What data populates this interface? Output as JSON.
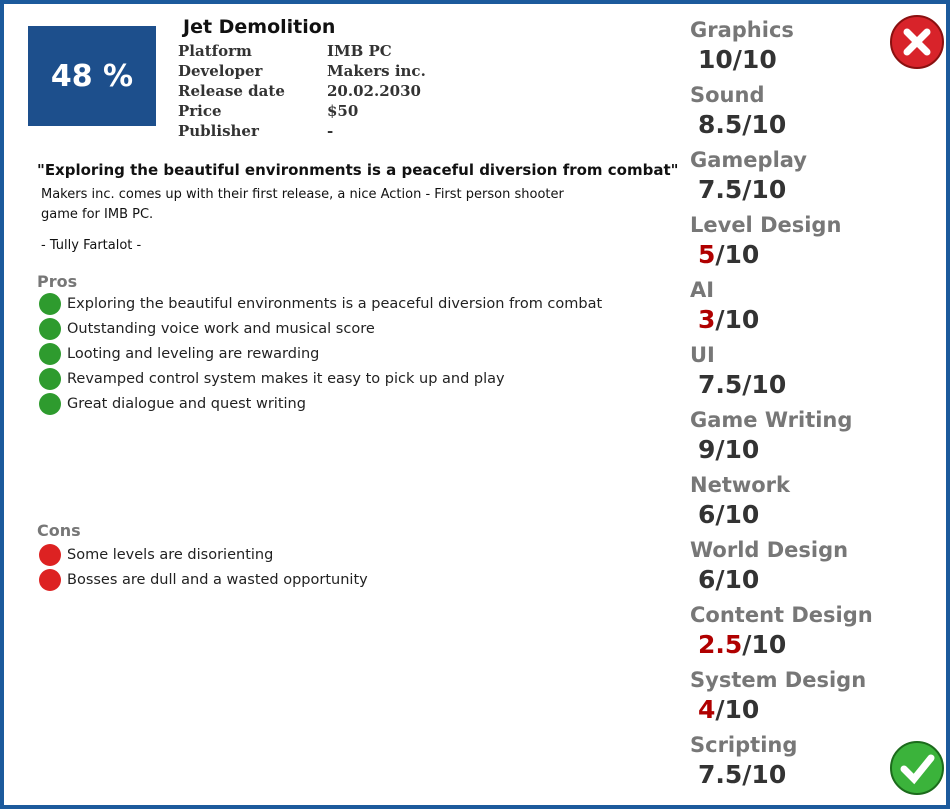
{
  "header": {
    "score": "48 %",
    "title": "Jet Demolition",
    "info": [
      {
        "label": "Platform",
        "value": "IMB PC"
      },
      {
        "label": "Developer",
        "value": "Makers inc."
      },
      {
        "label": "Release date",
        "value": "20.02.2030"
      },
      {
        "label": "Price",
        "value": "$50"
      },
      {
        "label": "Publisher",
        "value": "-"
      }
    ]
  },
  "review": {
    "quote": "\"Exploring the beautiful environments is a peaceful diversion from combat\"",
    "text": "Makers inc. comes up with their first release, a nice Action - First person shooter game for IMB PC.",
    "author": "- Tully Fartalot -"
  },
  "pros": {
    "title": "Pros",
    "color": "#2e9b2e",
    "items": [
      "Exploring the beautiful environments is a peaceful diversion from combat",
      "Outstanding voice work and musical score",
      "Looting and leveling are rewarding",
      "Revamped control system makes it easy to pick up and play",
      "Great dialogue and quest writing"
    ]
  },
  "cons": {
    "title": "Cons",
    "color": "#d22",
    "items": [
      "Some levels are disorienting",
      "Bosses are dull and a wasted opportunity"
    ]
  },
  "ratings": [
    {
      "name": "Graphics",
      "score": "10",
      "max": "/10",
      "color": "#333"
    },
    {
      "name": "Sound",
      "score": "8.5",
      "max": "/10",
      "color": "#333"
    },
    {
      "name": "Gameplay",
      "score": "7.5",
      "max": "/10",
      "color": "#333"
    },
    {
      "name": "Level Design",
      "score": "5",
      "max": "/10",
      "color": "#b00000"
    },
    {
      "name": "AI",
      "score": "3",
      "max": "/10",
      "color": "#b00000"
    },
    {
      "name": "UI",
      "score": "7.5",
      "max": "/10",
      "color": "#333"
    },
    {
      "name": "Game Writing",
      "score": "9",
      "max": "/10",
      "color": "#333"
    },
    {
      "name": "Network",
      "score": "6",
      "max": "/10",
      "color": "#333"
    },
    {
      "name": "World Design",
      "score": "6",
      "max": "/10",
      "color": "#333"
    },
    {
      "name": "Content Design",
      "score": "2.5",
      "max": "/10",
      "color": "#b00000"
    },
    {
      "name": "System Design",
      "score": "4",
      "max": "/10",
      "color": "#b00000"
    },
    {
      "name": "Scripting",
      "score": "7.5",
      "max": "/10",
      "color": "#333"
    }
  ]
}
